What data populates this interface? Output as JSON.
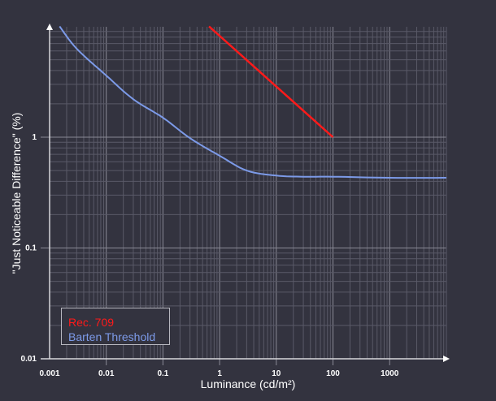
{
  "chart_data": {
    "type": "line",
    "title": "",
    "xlabel": "Luminance (cd/m²)",
    "ylabel": "\"Just Noticeable Difference\" (%)",
    "xscale": "log",
    "yscale": "log",
    "xlim": [
      0.001,
      10000
    ],
    "ylim": [
      0.01,
      10
    ],
    "x_ticks": [
      "0.001",
      "0.01",
      "0.1",
      "1",
      "10",
      "100",
      "1000"
    ],
    "y_ticks": [
      "0.01",
      "0.1",
      "1"
    ],
    "grid": true,
    "legend_position": "lower left",
    "series": [
      {
        "name": "Rec. 709",
        "color": "#ff1a1a",
        "x": [
          0.65,
          1,
          10,
          100
        ],
        "y": [
          10,
          6.7,
          2.6,
          1.0
        ]
      },
      {
        "name": "Barten Threshold",
        "color": "#7c9ae8",
        "x": [
          0.0015,
          0.003,
          0.01,
          0.03,
          0.1,
          0.3,
          1,
          3,
          10,
          30,
          100,
          1000,
          10000
        ],
        "y": [
          10,
          6.3,
          3.6,
          2.2,
          1.5,
          0.98,
          0.68,
          0.5,
          0.45,
          0.44,
          0.44,
          0.43,
          0.43
        ]
      }
    ]
  },
  "legend": {
    "items": [
      {
        "label": "Rec. 709",
        "color": "#ff1a1a"
      },
      {
        "label": "Barten Threshold",
        "color": "#7c9ae8"
      }
    ]
  },
  "axes": {
    "x_label": "Luminance (cd/m²)",
    "y_label": "\"Just Noticeable Difference\" (%)",
    "x_tick_labels": [
      "0.001",
      "0.01",
      "0.1",
      "1",
      "10",
      "100",
      "1000"
    ],
    "y_tick_labels": [
      "0.01",
      "0.1",
      "1"
    ]
  }
}
